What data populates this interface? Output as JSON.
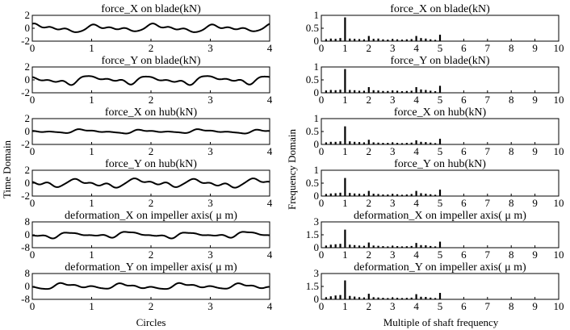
{
  "figure": {
    "left_ylabel": "Time Domain",
    "left_xlabel": "Circles",
    "right_ylabel": "Frequency  Domain",
    "right_xlabel": "Multiple of shaft frequency"
  },
  "chart_data": [
    {
      "type": "line",
      "column": "time",
      "row": 1,
      "title": "force_X on blade(kN)",
      "xlim": [
        0,
        4
      ],
      "ylim": [
        -2,
        2
      ],
      "yticks": [
        "2",
        "0",
        "-2"
      ],
      "xticks": [
        "0",
        "1",
        "2",
        "3",
        "4"
      ],
      "amplitude": 0.8
    },
    {
      "type": "line",
      "column": "time",
      "row": 2,
      "title": "force_Y on blade(kN)",
      "xlim": [
        0,
        4
      ],
      "ylim": [
        -2,
        2
      ],
      "yticks": [
        "2",
        "0",
        "-2"
      ],
      "xticks": [
        "0",
        "1",
        "2",
        "3",
        "4"
      ],
      "amplitude": 0.9
    },
    {
      "type": "line",
      "column": "time",
      "row": 3,
      "title": "force_X on hub(kN)",
      "xlim": [
        0,
        4
      ],
      "ylim": [
        -2,
        2
      ],
      "yticks": [
        "2",
        "0",
        "-2"
      ],
      "xticks": [
        "0",
        "1",
        "2",
        "3",
        "4"
      ],
      "amplitude": 0.4
    },
    {
      "type": "line",
      "column": "time",
      "row": 4,
      "title": "force_Y on hub(kN)",
      "xlim": [
        0,
        4
      ],
      "ylim": [
        -2,
        2
      ],
      "yticks": [
        "2",
        "0",
        "-2"
      ],
      "xticks": [
        "0",
        "1",
        "2",
        "3",
        "4"
      ],
      "amplitude": 0.9
    },
    {
      "type": "line",
      "column": "time",
      "row": 5,
      "title": "deformation_X on impeller axis( μ m)",
      "xlim": [
        0,
        4
      ],
      "ylim": [
        -8,
        8
      ],
      "yticks": [
        "8",
        "0",
        "-8"
      ],
      "xticks": [
        "0",
        "1",
        "2",
        "3",
        "4"
      ],
      "amplitude": 2.5
    },
    {
      "type": "line",
      "column": "time",
      "row": 6,
      "title": "deformation_Y on impeller axis( μ m)",
      "xlim": [
        0,
        4
      ],
      "ylim": [
        -8,
        8
      ],
      "yticks": [
        "8",
        "0",
        "-8"
      ],
      "xticks": [
        "0",
        "1",
        "2",
        "3",
        "4"
      ],
      "amplitude": 2.5
    },
    {
      "type": "bar",
      "column": "freq",
      "row": 1,
      "title": "force_X on blade(kN)",
      "xlim": [
        0,
        10
      ],
      "ylim": [
        0,
        1
      ],
      "yticks": [
        "1",
        "0.5",
        "0"
      ],
      "xticks": [
        "0",
        "1",
        "2",
        "3",
        "4",
        "5",
        "6",
        "7",
        "8",
        "9",
        "10"
      ],
      "x": [
        0.2,
        0.4,
        0.6,
        0.8,
        1,
        1.2,
        1.4,
        1.6,
        1.8,
        2,
        2.2,
        2.4,
        2.6,
        2.8,
        3,
        3.2,
        3.4,
        3.6,
        3.8,
        4,
        4.2,
        4.4,
        4.6,
        4.8,
        5
      ],
      "values": [
        0.08,
        0.1,
        0.09,
        0.12,
        0.92,
        0.1,
        0.09,
        0.08,
        0.07,
        0.2,
        0.09,
        0.1,
        0.07,
        0.06,
        0.08,
        0.07,
        0.06,
        0.07,
        0.08,
        0.2,
        0.12,
        0.1,
        0.07,
        0.05,
        0.25
      ]
    },
    {
      "type": "bar",
      "column": "freq",
      "row": 2,
      "title": "force_Y on blade(kN)",
      "xlim": [
        0,
        10
      ],
      "ylim": [
        0,
        1
      ],
      "yticks": [
        "1",
        "0.5",
        "0"
      ],
      "xticks": [
        "0",
        "1",
        "2",
        "3",
        "4",
        "5",
        "6",
        "7",
        "8",
        "9",
        "10"
      ],
      "x": [
        0.2,
        0.4,
        0.6,
        0.8,
        1,
        1.2,
        1.4,
        1.6,
        1.8,
        2,
        2.2,
        2.4,
        2.6,
        2.8,
        3,
        3.2,
        3.4,
        3.6,
        3.8,
        4,
        4.2,
        4.4,
        4.6,
        4.8,
        5
      ],
      "values": [
        0.09,
        0.11,
        0.1,
        0.12,
        0.92,
        0.11,
        0.1,
        0.08,
        0.08,
        0.22,
        0.1,
        0.09,
        0.07,
        0.07,
        0.09,
        0.08,
        0.06,
        0.07,
        0.08,
        0.22,
        0.13,
        0.11,
        0.08,
        0.06,
        0.27
      ]
    },
    {
      "type": "bar",
      "column": "freq",
      "row": 3,
      "title": "force_X on hub(kN)",
      "xlim": [
        0,
        10
      ],
      "ylim": [
        0,
        1
      ],
      "yticks": [
        "1",
        "0.5",
        "0"
      ],
      "xticks": [
        "0",
        "1",
        "2",
        "3",
        "4",
        "5",
        "6",
        "7",
        "8",
        "9",
        "10"
      ],
      "x": [
        0.2,
        0.4,
        0.6,
        0.8,
        1,
        1.2,
        1.4,
        1.6,
        1.8,
        2,
        2.2,
        2.4,
        2.6,
        2.8,
        3,
        3.2,
        3.4,
        3.6,
        3.8,
        4,
        4.2,
        4.4,
        4.6,
        4.8,
        5
      ],
      "values": [
        0.08,
        0.1,
        0.1,
        0.12,
        0.7,
        0.12,
        0.1,
        0.09,
        0.08,
        0.18,
        0.08,
        0.07,
        0.06,
        0.06,
        0.07,
        0.06,
        0.05,
        0.06,
        0.07,
        0.16,
        0.1,
        0.09,
        0.07,
        0.05,
        0.22
      ]
    },
    {
      "type": "bar",
      "column": "freq",
      "row": 4,
      "title": "force_Y on hub(kN)",
      "xlim": [
        0,
        10
      ],
      "ylim": [
        0,
        1
      ],
      "yticks": [
        "1",
        "0.5",
        "0"
      ],
      "xticks": [
        "0",
        "1",
        "2",
        "3",
        "4",
        "5",
        "6",
        "7",
        "8",
        "9",
        "10"
      ],
      "x": [
        0.2,
        0.4,
        0.6,
        0.8,
        1,
        1.2,
        1.4,
        1.6,
        1.8,
        2,
        2.2,
        2.4,
        2.6,
        2.8,
        3,
        3.2,
        3.4,
        3.6,
        3.8,
        4,
        4.2,
        4.4,
        4.6,
        4.8,
        5
      ],
      "values": [
        0.08,
        0.1,
        0.11,
        0.13,
        0.7,
        0.12,
        0.1,
        0.09,
        0.08,
        0.2,
        0.09,
        0.08,
        0.06,
        0.06,
        0.08,
        0.07,
        0.05,
        0.06,
        0.08,
        0.2,
        0.11,
        0.09,
        0.07,
        0.05,
        0.25
      ]
    },
    {
      "type": "bar",
      "column": "freq",
      "row": 5,
      "title": "deformation_X on impeller axis( μ m)",
      "xlim": [
        0,
        10
      ],
      "ylim": [
        0,
        3
      ],
      "yticks": [
        "3",
        "1.5",
        "0"
      ],
      "xticks": [
        "0",
        "1",
        "2",
        "3",
        "4",
        "5",
        "6",
        "7",
        "8",
        "9",
        "10"
      ],
      "x": [
        0.2,
        0.4,
        0.6,
        0.8,
        1,
        1.2,
        1.4,
        1.6,
        1.8,
        2,
        2.2,
        2.4,
        2.6,
        2.8,
        3,
        3.2,
        3.4,
        3.6,
        3.8,
        4,
        4.2,
        4.4,
        4.6,
        4.8,
        5
      ],
      "values": [
        0.25,
        0.35,
        0.4,
        0.45,
        2.1,
        0.35,
        0.3,
        0.25,
        0.22,
        0.6,
        0.25,
        0.22,
        0.18,
        0.15,
        0.2,
        0.18,
        0.15,
        0.17,
        0.2,
        0.55,
        0.3,
        0.28,
        0.2,
        0.15,
        0.7
      ]
    },
    {
      "type": "bar",
      "column": "freq",
      "row": 6,
      "title": "deformation_Y on impeller axis( μ m)",
      "xlim": [
        0,
        10
      ],
      "ylim": [
        0,
        3
      ],
      "yticks": [
        "3",
        "1.5",
        "0"
      ],
      "xticks": [
        "0",
        "1",
        "2",
        "3",
        "4",
        "5",
        "6",
        "7",
        "8",
        "9",
        "10"
      ],
      "x": [
        0.2,
        0.4,
        0.6,
        0.8,
        1,
        1.2,
        1.4,
        1.6,
        1.8,
        2,
        2.2,
        2.4,
        2.6,
        2.8,
        3,
        3.2,
        3.4,
        3.6,
        3.8,
        4,
        4.2,
        4.4,
        4.6,
        4.8,
        5
      ],
      "values": [
        0.25,
        0.35,
        0.45,
        0.5,
        2.2,
        0.4,
        0.32,
        0.25,
        0.22,
        0.65,
        0.25,
        0.22,
        0.18,
        0.15,
        0.2,
        0.18,
        0.15,
        0.17,
        0.2,
        0.6,
        0.3,
        0.28,
        0.2,
        0.15,
        0.75
      ]
    }
  ]
}
